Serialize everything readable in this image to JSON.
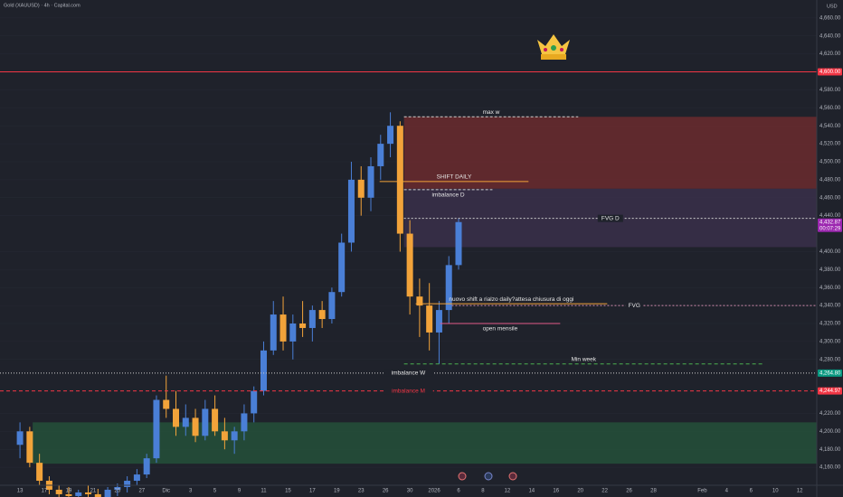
{
  "header": {
    "symbol": "Gold (XAUUSD) · 4h · Capital.com",
    "currency": "USD"
  },
  "chart_data": {
    "type": "candlestick",
    "xlim": [
      -0.82,
      32.7
    ],
    "ylim": [
      4140,
      4680
    ],
    "x_labels": [
      "13",
      "17",
      "19",
      "21",
      "25",
      "27",
      "Dic",
      "3",
      "5",
      "9",
      "11",
      "15",
      "17",
      "19",
      "23",
      "26",
      "30",
      "2026",
      "6",
      "8",
      "12",
      "14",
      "16",
      "20",
      "22",
      "26",
      "28",
      null,
      "Feb",
      "4",
      "6",
      "10",
      "12"
    ],
    "yticks": [
      {
        "value": 4660,
        "label": "4,660.00"
      },
      {
        "value": 4640,
        "label": "4,640.00"
      },
      {
        "value": 4620,
        "label": "4,620.00"
      },
      {
        "value": 4580,
        "label": "4,580.00"
      },
      {
        "value": 4560,
        "label": "4,560.00"
      },
      {
        "value": 4540,
        "label": "4,540.00"
      },
      {
        "value": 4520,
        "label": "4,520.00"
      },
      {
        "value": 4500,
        "label": "4,500.00"
      },
      {
        "value": 4480,
        "label": "4,480.00"
      },
      {
        "value": 4460,
        "label": "4,460.00"
      },
      {
        "value": 4440,
        "label": "4,440.00"
      },
      {
        "value": 4400,
        "label": "4,400.00"
      },
      {
        "value": 4380,
        "label": "4,380.00"
      },
      {
        "value": 4360,
        "label": "4,360.00"
      },
      {
        "value": 4340,
        "label": "4,340.00"
      },
      {
        "value": 4320,
        "label": "4,320.00"
      },
      {
        "value": 4300,
        "label": "4,300.00"
      },
      {
        "value": 4280,
        "label": "4,280.00"
      },
      {
        "value": 4220,
        "label": "4,220.00"
      },
      {
        "value": 4200,
        "label": "4,200.00"
      },
      {
        "value": 4180,
        "label": "4,180.00"
      },
      {
        "value": 4160,
        "label": "4,160.00"
      }
    ],
    "candles": {
      "x": [
        0,
        0.4,
        0.8,
        1.2,
        1.6,
        2,
        2.4,
        2.8,
        3.2,
        3.6,
        4,
        4.4,
        4.8,
        5.2,
        5.6,
        6,
        6.4,
        6.8,
        7.2,
        7.6,
        8,
        8.4,
        8.8,
        9.2,
        9.6,
        10,
        10.4,
        10.8,
        11.2,
        11.6,
        12,
        12.4,
        12.8,
        13.2,
        13.6,
        14,
        14.4,
        14.8,
        15.2,
        15.6,
        16,
        16.4,
        16.8,
        17.2,
        17.6,
        18
      ],
      "open": [
        4185,
        4200,
        4165,
        4145,
        4135,
        4130,
        4128,
        4132,
        4130,
        4126,
        4135,
        4138,
        4145,
        4152,
        4170,
        4235,
        4225,
        4205,
        4215,
        4195,
        4225,
        4200,
        4190,
        4200,
        4220,
        4245,
        4290,
        4330,
        4300,
        4320,
        4315,
        4335,
        4325,
        4355,
        4410,
        4480,
        4460,
        4495,
        4520,
        4540,
        4420,
        4350,
        4340,
        4310,
        4335,
        4385
      ],
      "high": [
        4210,
        4205,
        4175,
        4150,
        4140,
        4138,
        4135,
        4140,
        4136,
        4138,
        4142,
        4150,
        4158,
        4175,
        4240,
        4262,
        4245,
        4230,
        4225,
        4235,
        4240,
        4215,
        4205,
        4230,
        4250,
        4300,
        4345,
        4350,
        4330,
        4345,
        4340,
        4345,
        4360,
        4420,
        4500,
        4495,
        4505,
        4530,
        4555,
        4545,
        4435,
        4370,
        4365,
        4345,
        4395,
        4437
      ],
      "low": [
        4170,
        4160,
        4140,
        4130,
        4125,
        4122,
        4120,
        4125,
        4120,
        4122,
        4128,
        4132,
        4140,
        4148,
        4165,
        4215,
        4195,
        4195,
        4188,
        4190,
        4195,
        4180,
        4175,
        4190,
        4210,
        4240,
        4285,
        4290,
        4280,
        4305,
        4300,
        4315,
        4320,
        4350,
        4400,
        4440,
        4445,
        4480,
        4505,
        4400,
        4330,
        4305,
        4290,
        4275,
        4320,
        4380
      ],
      "close": [
        4200,
        4165,
        4145,
        4135,
        4130,
        4128,
        4132,
        4130,
        4126,
        4135,
        4138,
        4145,
        4152,
        4170,
        4235,
        4225,
        4205,
        4215,
        4195,
        4225,
        4200,
        4190,
        4200,
        4220,
        4245,
        4290,
        4330,
        4300,
        4320,
        4315,
        4335,
        4325,
        4355,
        4410,
        4480,
        4460,
        4495,
        4520,
        4540,
        4420,
        4350,
        4340,
        4310,
        4335,
        4385,
        4432.87
      ]
    },
    "up_color": "#4a7fd6",
    "down_color": "#f2a33a",
    "zones": [
      {
        "x0": 15.76,
        "x1": 32.7,
        "y0": 4470,
        "y1": 4550,
        "color": "#6b2a2e"
      },
      {
        "x0": 15.76,
        "x1": 32.7,
        "y0": 4405,
        "y1": 4470,
        "color": "#3a2f4a"
      },
      {
        "x0": 0.52,
        "x1": 32.7,
        "y0": 4164,
        "y1": 4210,
        "color": "#25503a"
      }
    ],
    "levels": [
      {
        "value": 4600,
        "x0": -0.82,
        "x1": 32.7,
        "color": "#f23645"
      },
      {
        "label": "max w",
        "value": 4550,
        "x0": 15.76,
        "x1": 22.91,
        "color": "#cfcfcf",
        "dash": "3,2",
        "label_pos": "above"
      },
      {
        "label": "SHIFT DAILY",
        "value": 4478,
        "x0": 14.76,
        "x1": 20.87,
        "color": "#f2a33a",
        "label_pos": "above"
      },
      {
        "label": "imbalance D",
        "value": 4469,
        "x0": 15.76,
        "x1": 19.39,
        "color": "#cfcfcf",
        "dash": "3,2",
        "label_pos": "below"
      },
      {
        "label": "FVG D",
        "value": 4437,
        "x0": 15.76,
        "x1": 32.7,
        "color": "#cfcfcf",
        "dash": "2,2",
        "label_pos": "on"
      },
      {
        "label": "FVG",
        "value": 4340,
        "x0": 17.72,
        "x1": 32.7,
        "color": "#d48fb0",
        "dash": "2,2",
        "label_pos": "on"
      },
      {
        "label": "nuovo shift a rialzo daily?attesa chiusura di oggi",
        "value": 4342,
        "x0": 16.24,
        "x1": 24.1,
        "color": "#f2a33a",
        "label_pos": "above"
      },
      {
        "label": "open mensile",
        "value": 4320,
        "x0": 17.24,
        "x1": 22.17,
        "color": "#e05a8a",
        "label_pos": "below"
      },
      {
        "label": "Min week",
        "value": 4275,
        "x0": 15.76,
        "x1": 30.51,
        "color": "#4caf50",
        "dash": "4,3",
        "label_pos": "above"
      },
      {
        "label": "imbalance W",
        "value": 4264.8,
        "x0": -0.82,
        "x1": 32.7,
        "color": "#d0d0d0",
        "dash": "1,2",
        "label_pos": "on"
      },
      {
        "label": "imbalance M",
        "value": 4244.97,
        "x0": -0.82,
        "x1": 32.7,
        "color": "#f23645",
        "dash": "4,3",
        "label_pos": "on"
      }
    ],
    "price_labels": [
      {
        "value": 4600,
        "label": "4,600.00",
        "color": "#f23645"
      },
      {
        "value": 4432.87,
        "label": "4,432.87",
        "sub": "00:07:29",
        "color": "#9c27b0"
      },
      {
        "value": 4264.8,
        "label": "4,264.80",
        "color": "#089981"
      },
      {
        "value": 4244.97,
        "label": "4,244.97",
        "color": "#f23645"
      }
    ]
  }
}
